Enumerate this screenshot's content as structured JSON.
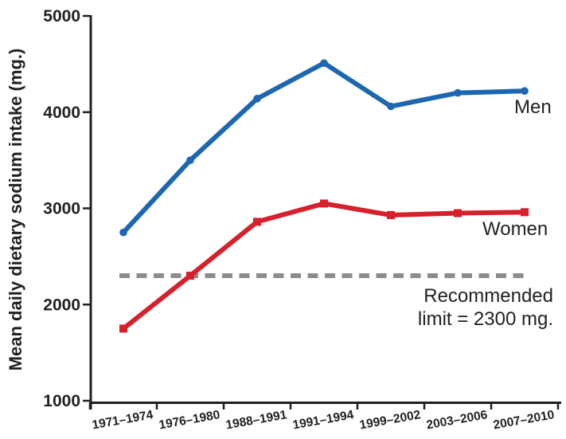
{
  "chart_data": {
    "type": "line",
    "title": "",
    "xlabel": "",
    "ylabel": "Mean daily dietary sodium intake (mg.)",
    "categories": [
      "1971–1974",
      "1976–1980",
      "1988–1991",
      "1991–1994",
      "1999–2002",
      "2003–2006",
      "2007–2010"
    ],
    "series": [
      {
        "name": "Men",
        "color": "#1c67b0",
        "marker": "circle",
        "values": [
          2750,
          3500,
          4140,
          4510,
          4060,
          4200,
          4220
        ]
      },
      {
        "name": "Women",
        "color": "#d6202b",
        "marker": "square",
        "values": [
          1750,
          2300,
          2860,
          3050,
          2930,
          2950,
          2960
        ]
      }
    ],
    "reference_line": {
      "value": 2300,
      "label_line1": "Recommended",
      "label_line2": "limit = 2300 mg.",
      "color": "#8c8c8c",
      "style": "dashed"
    },
    "ylim": [
      1000,
      5000
    ],
    "yticks": [
      5000,
      4000,
      3000,
      2000,
      1000
    ],
    "grid": false,
    "axis_color": "#231f20",
    "legend_position": "inline-end-of-lines"
  }
}
